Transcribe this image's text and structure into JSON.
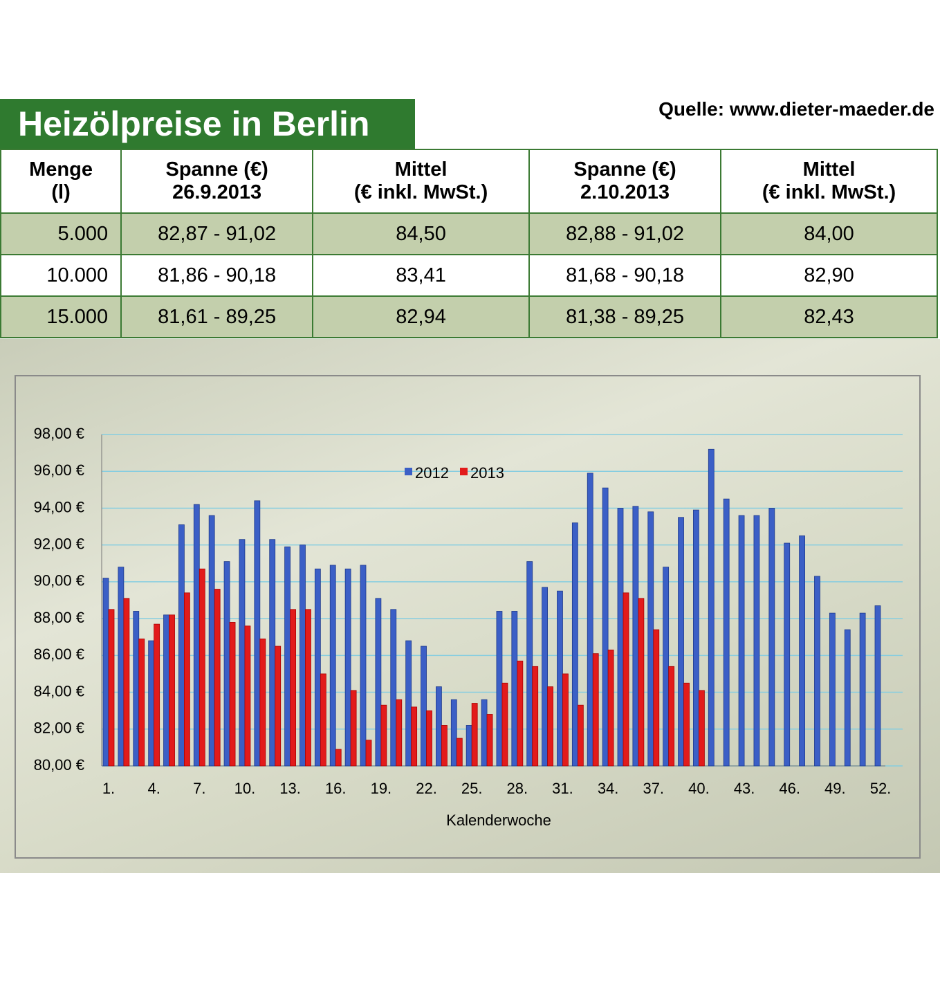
{
  "header": {
    "title": "Heizölpreise in Berlin",
    "source": "Quelle: www.dieter-maeder.de"
  },
  "table": {
    "header": [
      [
        "Menge",
        "(l)"
      ],
      [
        "Spanne (€)",
        "26.9.2013"
      ],
      [
        "Mittel",
        "(€ inkl. MwSt.)"
      ],
      [
        "Spanne (€)",
        "2.10.2013"
      ],
      [
        "Mittel",
        "(€ inkl. MwSt.)"
      ]
    ],
    "rows": [
      [
        "5.000",
        "82,87 - 91,02",
        "84,50",
        "82,88 - 91,02",
        "84,00"
      ],
      [
        "10.000",
        "81,86 - 90,18",
        "83,41",
        "81,68 - 90,18",
        "82,90"
      ],
      [
        "15.000",
        "81,61 - 89,25",
        "82,94",
        "81,38 - 89,25",
        "82,43"
      ]
    ]
  },
  "chart_data": {
    "type": "bar",
    "x_label": "Kalenderwoche",
    "categories": [
      "1.",
      null,
      null,
      "4.",
      null,
      null,
      "7.",
      null,
      null,
      "10.",
      null,
      null,
      "13.",
      null,
      null,
      "16.",
      null,
      null,
      "19.",
      null,
      null,
      "22.",
      null,
      null,
      "25.",
      null,
      null,
      "28.",
      null,
      null,
      "31.",
      null,
      null,
      "34.",
      null,
      null,
      "37.",
      null,
      null,
      "40.",
      null,
      null,
      "43.",
      null,
      null,
      "46.",
      null,
      null,
      "49.",
      null,
      null,
      "52."
    ],
    "series": [
      {
        "name": "2012",
        "color": "#3b5fc6",
        "values": [
          90.2,
          90.8,
          88.4,
          86.8,
          88.2,
          93.1,
          94.2,
          93.6,
          91.1,
          92.3,
          94.4,
          92.3,
          91.9,
          92.0,
          90.7,
          90.9,
          90.7,
          90.9,
          89.1,
          88.5,
          86.8,
          86.5,
          84.3,
          83.6,
          82.2,
          83.6,
          88.4,
          88.4,
          91.1,
          89.7,
          89.5,
          93.2,
          95.9,
          95.1,
          94.0,
          94.1,
          93.8,
          90.8,
          93.5,
          93.9,
          97.2,
          94.5,
          93.6,
          93.6,
          94.0,
          92.1,
          92.5,
          90.3,
          88.3,
          87.4,
          88.3,
          88.7
        ]
      },
      {
        "name": "2013",
        "color": "#e21b1b",
        "values": [
          88.5,
          89.1,
          86.9,
          87.7,
          88.2,
          89.4,
          90.7,
          89.6,
          87.8,
          87.6,
          86.9,
          86.5,
          88.5,
          88.5,
          85.0,
          80.9,
          84.1,
          81.4,
          83.3,
          83.6,
          83.2,
          83.0,
          82.2,
          81.5,
          83.4,
          82.8,
          84.5,
          85.7,
          85.4,
          84.3,
          85.0,
          83.3,
          86.1,
          86.3,
          89.4,
          89.1,
          87.4,
          85.4,
          84.5,
          84.1,
          null,
          null,
          null,
          null,
          null,
          null,
          null,
          null,
          null,
          null,
          null,
          null
        ]
      }
    ],
    "ylim": [
      80,
      98
    ],
    "yticks": [
      {
        "value": 80,
        "label": "80,00 €"
      },
      {
        "value": 82,
        "label": "82,00 €"
      },
      {
        "value": 84,
        "label": "84,00 €"
      },
      {
        "value": 86,
        "label": "86,00 €"
      },
      {
        "value": 88,
        "label": "88,00 €"
      },
      {
        "value": 90,
        "label": "90,00 €"
      },
      {
        "value": 92,
        "label": "92,00 €"
      },
      {
        "value": 94,
        "label": "94,00 €"
      },
      {
        "value": 96,
        "label": "96,00 €"
      },
      {
        "value": 98,
        "label": "98,00 €"
      }
    ],
    "grid": true
  }
}
